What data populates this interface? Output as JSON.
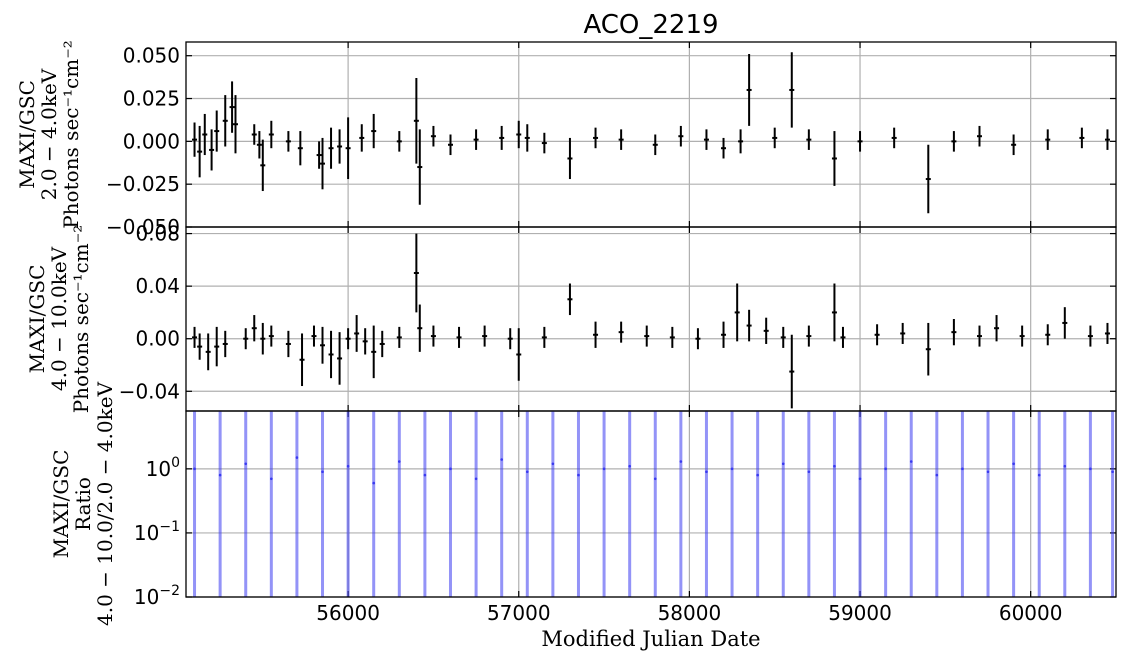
{
  "chart_data": {
    "type": "scatter",
    "title": "ACO_2219",
    "xlabel": "Modified Julian Date",
    "xlim": [
      55050,
      60500
    ],
    "xticks": [
      56000,
      57000,
      58000,
      59000,
      60000
    ],
    "grid": true,
    "panels": [
      {
        "id": "soft",
        "ylabel_lines": [
          "MAXI/GSC",
          "2.0 − 4.0keV",
          "Photons sec⁻¹cm⁻²"
        ],
        "ylim": [
          -0.05,
          0.058
        ],
        "yticks": [
          -0.05,
          -0.025,
          0.0,
          0.025,
          0.05
        ],
        "ytick_labels": [
          "−0.050",
          "−0.025",
          "0.000",
          "0.025",
          "0.050"
        ],
        "series": [
          {
            "color": "#000000",
            "style": "errorbar",
            "x": [
              55100,
              55130,
              55160,
              55200,
              55230,
              55280,
              55320,
              55340,
              55450,
              55480,
              55500,
              55550,
              55650,
              55720,
              55830,
              55850,
              55900,
              55950,
              56000,
              56080,
              56150,
              56300,
              56400,
              56420,
              56500,
              56600,
              56750,
              56900,
              57000,
              57050,
              57150,
              57300,
              57450,
              57600,
              57800,
              57950,
              58100,
              58200,
              58300,
              58350,
              58500,
              58600,
              58700,
              58850,
              59000,
              59200,
              59400,
              59550,
              59700,
              59900,
              60100,
              60300,
              60450
            ],
            "y": [
              0.001,
              -0.006,
              0.004,
              -0.005,
              0.006,
              0.012,
              0.02,
              0.01,
              0.004,
              -0.002,
              -0.014,
              0.004,
              0.0,
              -0.004,
              -0.008,
              -0.013,
              -0.004,
              -0.003,
              -0.004,
              0.002,
              0.006,
              0.0,
              0.012,
              -0.015,
              0.003,
              -0.002,
              0.001,
              0.002,
              0.004,
              0.002,
              -0.001,
              -0.01,
              0.002,
              0.001,
              -0.002,
              0.003,
              0.001,
              -0.004,
              0.0,
              0.03,
              0.002,
              0.03,
              0.001,
              -0.01,
              0.0,
              0.002,
              -0.022,
              0.0,
              0.003,
              -0.002,
              0.001,
              0.002,
              0.001
            ],
            "yerr": [
              0.01,
              0.015,
              0.012,
              0.012,
              0.012,
              0.015,
              0.015,
              0.017,
              0.006,
              0.008,
              0.015,
              0.008,
              0.006,
              0.01,
              0.008,
              0.015,
              0.012,
              0.01,
              0.018,
              0.008,
              0.01,
              0.006,
              0.025,
              0.022,
              0.006,
              0.006,
              0.006,
              0.007,
              0.008,
              0.008,
              0.006,
              0.012,
              0.006,
              0.006,
              0.006,
              0.006,
              0.006,
              0.006,
              0.007,
              0.021,
              0.006,
              0.022,
              0.006,
              0.016,
              0.006,
              0.006,
              0.02,
              0.006,
              0.006,
              0.006,
              0.006,
              0.006,
              0.006
            ]
          }
        ]
      },
      {
        "id": "hard",
        "ylabel_lines": [
          "MAXI/GSC",
          "4.0 − 10.0keV",
          "Photons sec⁻¹cm⁻²"
        ],
        "ylim": [
          -0.055,
          0.085
        ],
        "yticks": [
          -0.04,
          0.0,
          0.04,
          0.08
        ],
        "ytick_labels": [
          "−0.04",
          "0.00",
          "0.04",
          "0.08"
        ],
        "series": [
          {
            "color": "#000000",
            "style": "errorbar",
            "x": [
              55100,
              55130,
              55180,
              55230,
              55280,
              55400,
              55450,
              55500,
              55550,
              55650,
              55730,
              55800,
              55850,
              55900,
              55950,
              56000,
              56050,
              56100,
              56150,
              56200,
              56300,
              56400,
              56420,
              56500,
              56650,
              56800,
              56950,
              57000,
              57150,
              57300,
              57450,
              57600,
              57750,
              57900,
              58050,
              58200,
              58280,
              58350,
              58450,
              58550,
              58600,
              58700,
              58850,
              58900,
              59100,
              59250,
              59400,
              59550,
              59700,
              59800,
              59950,
              60100,
              60200,
              60350,
              60450
            ],
            "y": [
              0.001,
              -0.006,
              -0.01,
              -0.006,
              -0.004,
              0.0,
              0.008,
              0.0,
              0.002,
              -0.004,
              -0.016,
              0.002,
              -0.005,
              -0.012,
              -0.015,
              0.0,
              0.004,
              -0.002,
              -0.01,
              -0.004,
              0.001,
              0.05,
              0.008,
              0.002,
              0.001,
              0.002,
              0.0,
              -0.012,
              0.001,
              0.03,
              0.003,
              0.005,
              0.002,
              0.001,
              0.0,
              0.003,
              0.02,
              0.01,
              0.006,
              0.001,
              -0.025,
              0.002,
              0.02,
              0.001,
              0.003,
              0.004,
              -0.008,
              0.005,
              0.002,
              0.008,
              0.002,
              0.003,
              0.012,
              0.002,
              0.004
            ],
            "yerr": [
              0.008,
              0.01,
              0.014,
              0.015,
              0.01,
              0.008,
              0.01,
              0.012,
              0.008,
              0.01,
              0.02,
              0.008,
              0.014,
              0.018,
              0.02,
              0.008,
              0.014,
              0.01,
              0.02,
              0.01,
              0.008,
              0.03,
              0.018,
              0.008,
              0.008,
              0.008,
              0.008,
              0.02,
              0.008,
              0.012,
              0.01,
              0.008,
              0.008,
              0.008,
              0.008,
              0.01,
              0.022,
              0.012,
              0.01,
              0.008,
              0.028,
              0.008,
              0.022,
              0.008,
              0.008,
              0.008,
              0.02,
              0.01,
              0.008,
              0.01,
              0.008,
              0.008,
              0.012,
              0.008,
              0.008
            ]
          }
        ]
      },
      {
        "id": "ratio",
        "ylabel_lines": [
          "MAXI/GSC",
          "Ratio",
          "4.0 − 10.0/2.0 − 4.0keV"
        ],
        "yscale": "log",
        "ylim": [
          0.01,
          8.0
        ],
        "yticks": [
          0.01,
          0.1,
          1.0
        ],
        "ytick_base": "10",
        "ytick_exponents": [
          "−2",
          "−1",
          "0"
        ],
        "series": [
          {
            "color": "#3a3af0",
            "style": "errorbar",
            "x": [
              55100,
              55250,
              55400,
              55550,
              55700,
              55850,
              56000,
              56150,
              56300,
              56450,
              56600,
              56750,
              56900,
              57050,
              57200,
              57350,
              57500,
              57650,
              57800,
              57950,
              58100,
              58250,
              58400,
              58550,
              58700,
              58850,
              59000,
              59150,
              59300,
              59450,
              59600,
              59750,
              59900,
              60050,
              60200,
              60350,
              60480
            ],
            "y": [
              1.0,
              0.8,
              1.2,
              0.7,
              1.5,
              0.9,
              1.1,
              0.6,
              1.3,
              0.8,
              1.0,
              0.7,
              1.4,
              0.9,
              1.2,
              0.8,
              1.0,
              1.1,
              0.7,
              1.3,
              0.9,
              1.0,
              0.8,
              1.2,
              0.9,
              1.1,
              0.7,
              1.0,
              1.3,
              0.8,
              1.0,
              0.9,
              1.2,
              0.8,
              1.1,
              1.0,
              0.9
            ]
          }
        ]
      }
    ]
  }
}
